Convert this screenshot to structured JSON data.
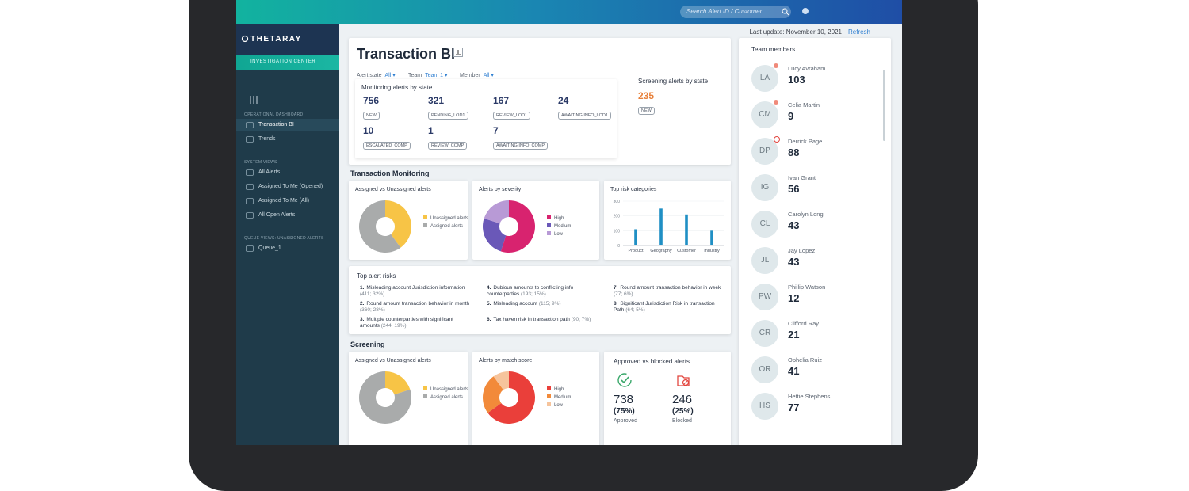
{
  "header": {
    "search_placeholder": "Search Alert ID / Customer",
    "last_update": "Last update: November 10, 2021",
    "refresh": "Refresh"
  },
  "sidebar": {
    "brand": "THETARAY",
    "product": "INVESTIGATION CENTER",
    "sections": [
      {
        "title": "OPERATIONAL DASHBOARD",
        "items": [
          "Transaction BI",
          "Trends"
        ]
      },
      {
        "title": "SYSTEM VIEWS",
        "items": [
          "All Alerts",
          "Assigned To Me (Opened)",
          "Assigned To Me (All)",
          "All Open Alerts"
        ]
      },
      {
        "title": "QUEUE VIEWS: UNASSIGNED ALERTS",
        "items": [
          "Queue_1"
        ]
      }
    ]
  },
  "page": {
    "title": "Transaction BI",
    "filters": [
      {
        "label": "Alert state",
        "value": "All"
      },
      {
        "label": "Team",
        "value": "Team 1"
      },
      {
        "label": "Member",
        "value": "All"
      }
    ]
  },
  "monitoring_alerts": {
    "title": "Monitoring alerts by state",
    "states": [
      {
        "count": 756,
        "state": "NEW"
      },
      {
        "count": 321,
        "state": "PENDING_LOD1"
      },
      {
        "count": 167,
        "state": "REVIEW_LOD1"
      },
      {
        "count": 24,
        "state": "AWAITING INFO_LOD1"
      },
      {
        "count": 10,
        "state": "ESCALATED_COMP"
      },
      {
        "count": 1,
        "state": "REVIEW_COMP"
      },
      {
        "count": 7,
        "state": "AWAITING INFO_COMP"
      }
    ]
  },
  "screening_alerts": {
    "title": "Screening alerts by state",
    "states": [
      {
        "count": 235,
        "state": "NEW"
      }
    ]
  },
  "transaction_monitoring": {
    "title": "Transaction Monitoring",
    "assigned_chart": {
      "type": "donut",
      "title": "Assigned vs Unassigned alerts",
      "series": [
        {
          "name": "Unassigned alerts",
          "color": "#f7c446",
          "value": 40
        },
        {
          "name": "Assigned alerts",
          "color": "#a9abab",
          "value": 60
        }
      ]
    },
    "severity_chart": {
      "type": "donut",
      "title": "Alerts by severity",
      "series": [
        {
          "name": "High",
          "color": "#d8236f",
          "value": 55
        },
        {
          "name": "Medium",
          "color": "#6a58b8",
          "value": 25
        },
        {
          "name": "Low",
          "color": "#b89ad6",
          "value": 20
        }
      ]
    },
    "risk_categories": {
      "type": "bar",
      "title": "Top risk categories",
      "categories": [
        "Product",
        "Geography",
        "Customer",
        "Industry"
      ],
      "values": [
        110,
        250,
        210,
        100
      ],
      "color": "#1f8fc4",
      "ylim": [
        0,
        300
      ],
      "yticks": [
        0,
        100,
        200,
        300
      ]
    }
  },
  "top_alert_risks": {
    "title": "Top alert risks",
    "items": [
      {
        "rank": "1.",
        "text": "Misleading account Jurisdiction information",
        "detail": "(411; 32%)"
      },
      {
        "rank": "2.",
        "text": "Round amount transaction behavior in month",
        "detail": "(360; 28%)"
      },
      {
        "rank": "3.",
        "text": "Multiple counterparties with significant amounts",
        "detail": "(244; 19%)"
      },
      {
        "rank": "4.",
        "text": "Dubious amounts to conflicting info counterparties",
        "detail": "(193; 15%)"
      },
      {
        "rank": "5.",
        "text": "Misleading account",
        "detail": "(115; 9%)"
      },
      {
        "rank": "6.",
        "text": "Tax haven risk in transaction path",
        "detail": "(90; 7%)"
      },
      {
        "rank": "7.",
        "text": "Round amount transaction behavior in week",
        "detail": "(77; 6%)"
      },
      {
        "rank": "8.",
        "text": "Significant Jurisdiction Risk in transaction Path",
        "detail": "(64; 5%)"
      }
    ]
  },
  "screening": {
    "title": "Screening",
    "assigned_chart": {
      "type": "donut",
      "title": "Assigned vs Unassigned alerts",
      "series": [
        {
          "name": "Unassigned alerts",
          "color": "#f7c446",
          "value": 20
        },
        {
          "name": "Assigned alerts",
          "color": "#a9abab",
          "value": 80
        }
      ]
    },
    "match_score_chart": {
      "type": "donut",
      "title": "Alerts by match score",
      "series": [
        {
          "name": "High",
          "color": "#ea3f3a",
          "value": 65
        },
        {
          "name": "Medium",
          "color": "#f28a3a",
          "value": 25
        },
        {
          "name": "Low",
          "color": "#f6c49c",
          "value": 10
        }
      ]
    },
    "approved_blocked": {
      "title": "Approved vs blocked alerts",
      "approved": {
        "count": 738,
        "percent": "(75%)",
        "label": "Approved"
      },
      "blocked": {
        "count": 246,
        "percent": "(25%)",
        "label": "Blocked"
      }
    }
  },
  "team": {
    "title": "Team members",
    "members": [
      {
        "initials": "LA",
        "name": "Lucy Avraham",
        "count": 103
      },
      {
        "initials": "CM",
        "name": "Celia Martin",
        "count": 9
      },
      {
        "initials": "DP",
        "name": "Derrick Page",
        "count": 88
      },
      {
        "initials": "IG",
        "name": "Ivan Grant",
        "count": 56
      },
      {
        "initials": "CL",
        "name": "Carolyn Long",
        "count": 43
      },
      {
        "initials": "JL",
        "name": "Jay Lopez",
        "count": 43
      },
      {
        "initials": "PW",
        "name": "Phillip Watson",
        "count": 12
      },
      {
        "initials": "CR",
        "name": "Clifford Ray",
        "count": 21
      },
      {
        "initials": "OR",
        "name": "Ophelia Ruiz",
        "count": 41
      },
      {
        "initials": "HS",
        "name": "Hettie Stephens",
        "count": 77
      }
    ]
  }
}
